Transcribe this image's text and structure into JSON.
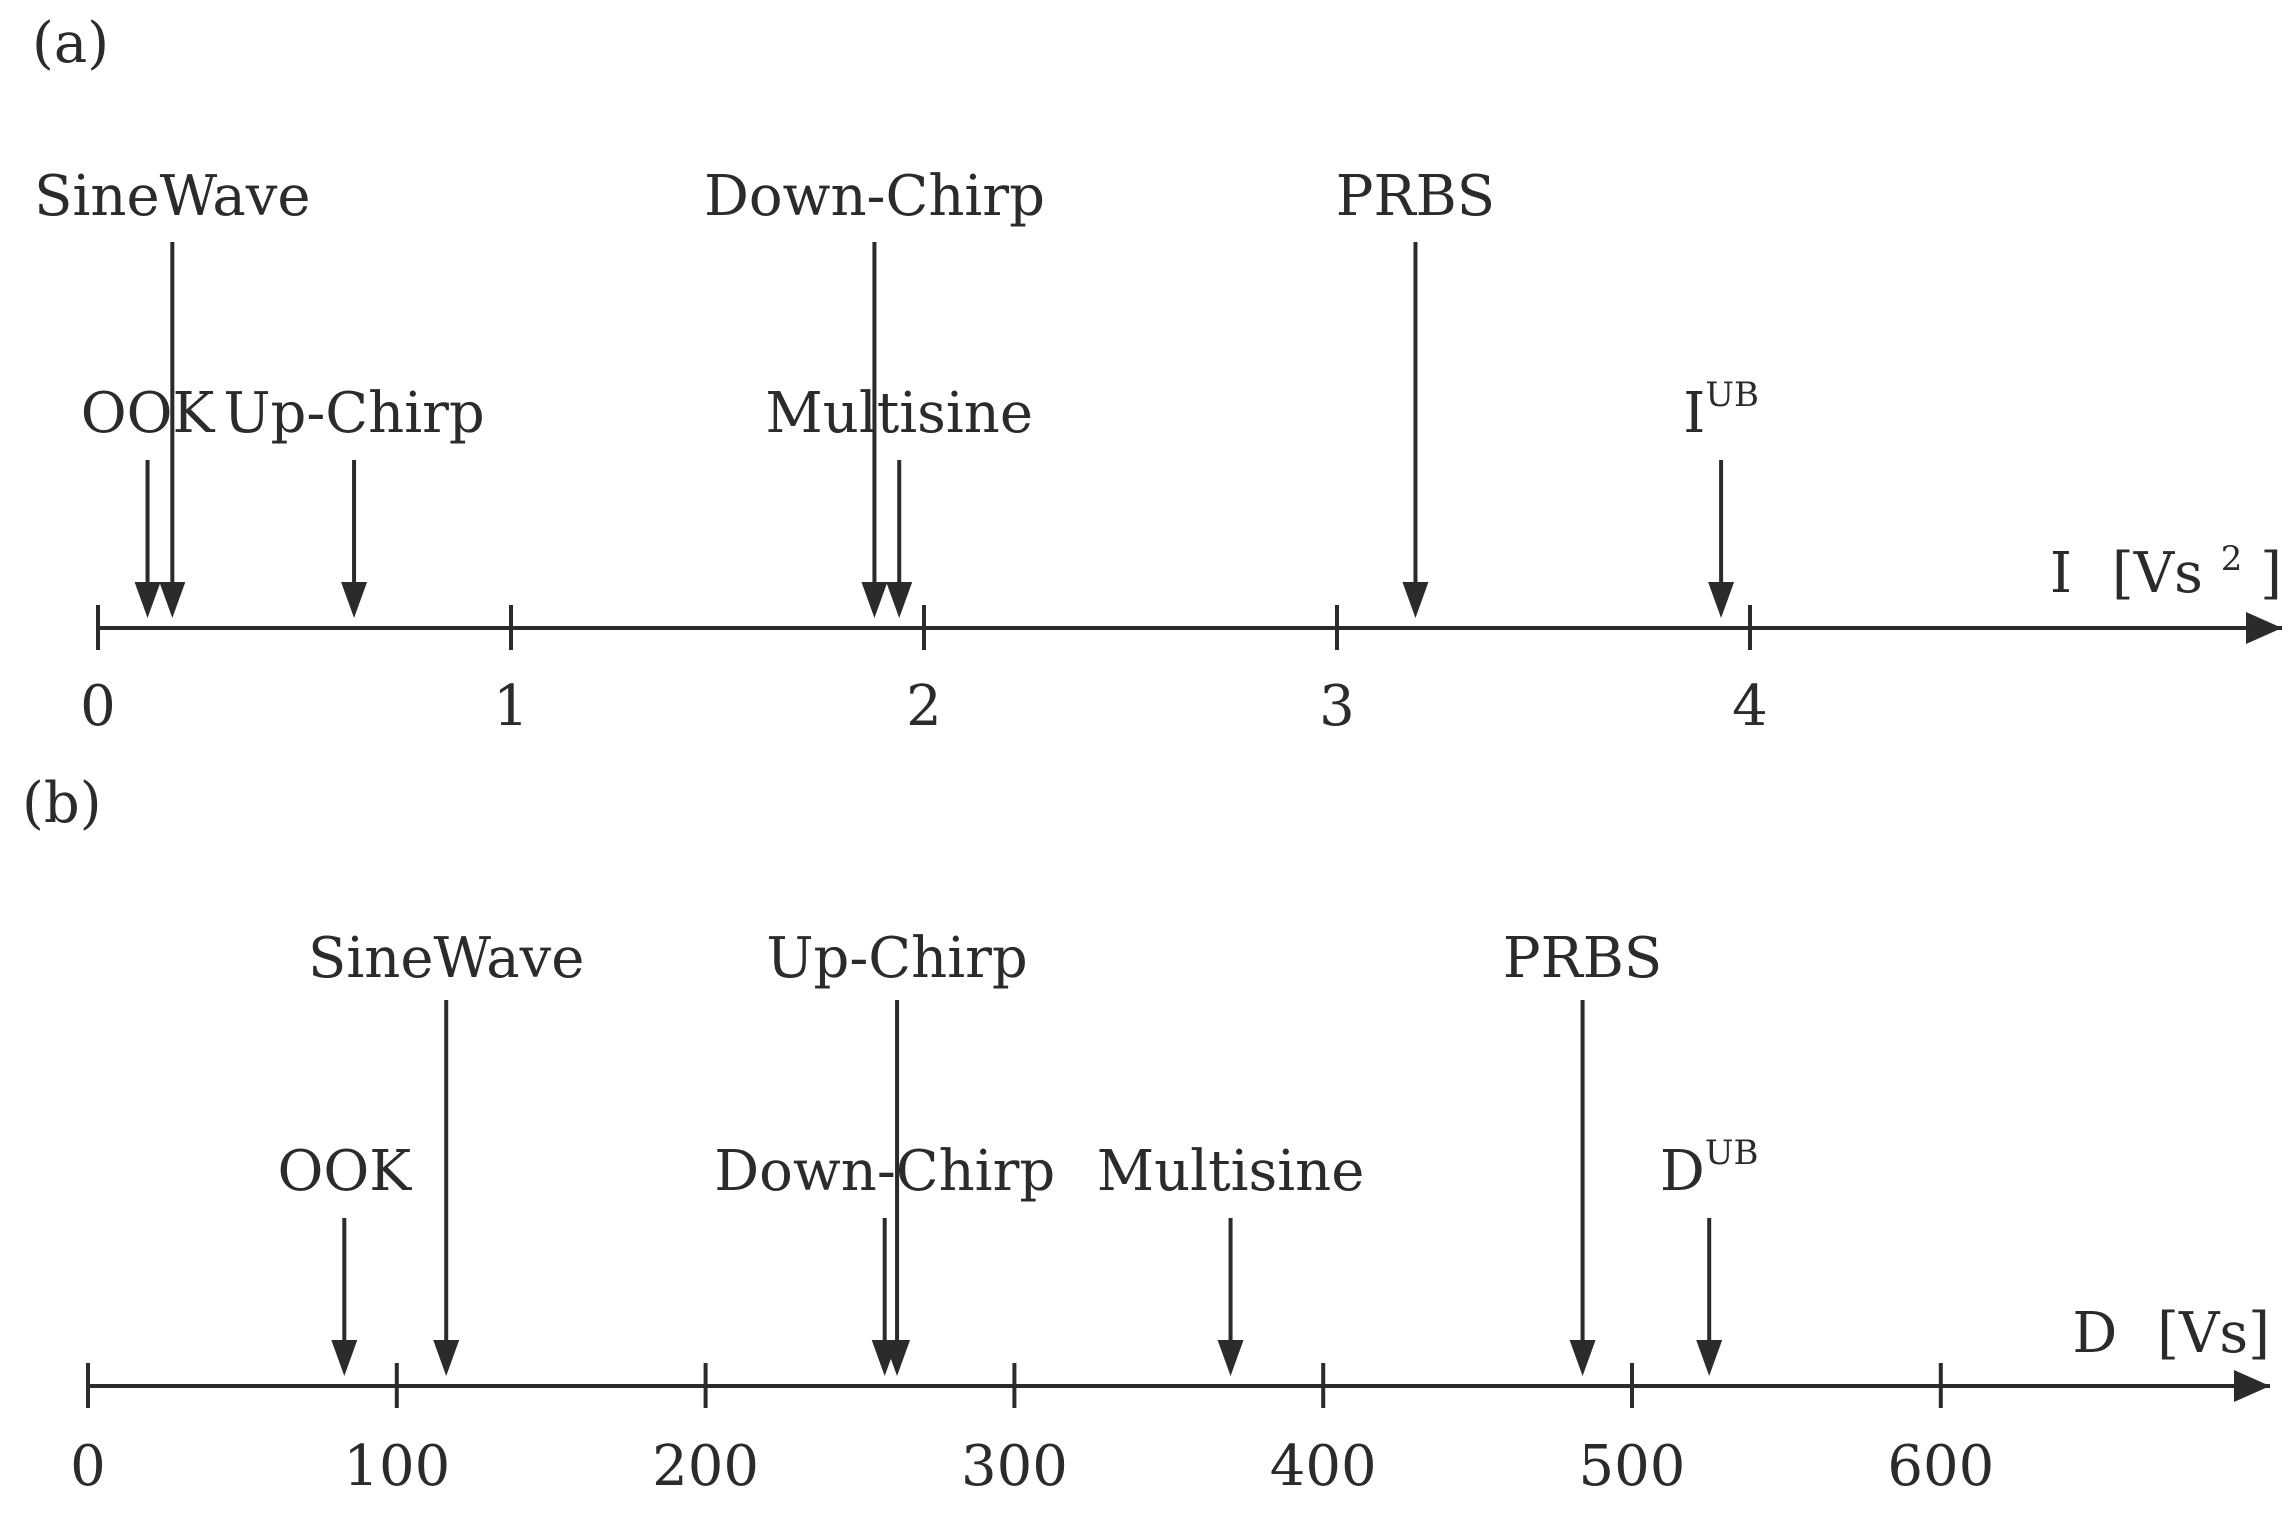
{
  "colors": {
    "ink": "#2b2b2b",
    "background": "#ffffff"
  },
  "panels": [
    {
      "panel_label": "(a)",
      "axis_symbol": "I",
      "axis_unit_prefix": "[Vs",
      "axis_unit_sup": "2",
      "axis_unit_suffix": "]",
      "ticks": [
        "0",
        "1",
        "2",
        "3",
        "4"
      ],
      "tick_values": [
        0,
        1,
        2,
        3,
        4
      ],
      "markers": [
        {
          "label": "OOK",
          "value": 0.12,
          "row": "low"
        },
        {
          "label": "SineWave",
          "value": 0.18,
          "row": "high"
        },
        {
          "label": "Up-Chirp",
          "value": 0.62,
          "row": "low"
        },
        {
          "label": "Down-Chirp",
          "value": 1.88,
          "row": "high"
        },
        {
          "label": "Multisine",
          "value": 1.94,
          "row": "low"
        },
        {
          "label": "PRBS",
          "value": 3.19,
          "row": "high"
        },
        {
          "label": "I",
          "sup": "UB",
          "value": 3.93,
          "row": "low"
        }
      ]
    },
    {
      "panel_label": "(b)",
      "axis_symbol": "D",
      "axis_unit_prefix": "[Vs]",
      "axis_unit_sup": "",
      "axis_unit_suffix": "",
      "ticks": [
        "0",
        "100",
        "200",
        "300",
        "400",
        "500",
        "600"
      ],
      "tick_values": [
        0,
        100,
        200,
        300,
        400,
        500,
        600
      ],
      "markers": [
        {
          "label": "OOK",
          "value": 83,
          "row": "low"
        },
        {
          "label": "SineWave",
          "value": 116,
          "row": "high"
        },
        {
          "label": "Down-Chirp",
          "value": 258,
          "row": "low"
        },
        {
          "label": "Up-Chirp",
          "value": 262,
          "row": "high"
        },
        {
          "label": "Multisine",
          "value": 370,
          "row": "low"
        },
        {
          "label": "PRBS",
          "value": 484,
          "row": "high"
        },
        {
          "label": "D",
          "sup": "UB",
          "value": 525,
          "row": "low"
        }
      ]
    }
  ]
}
